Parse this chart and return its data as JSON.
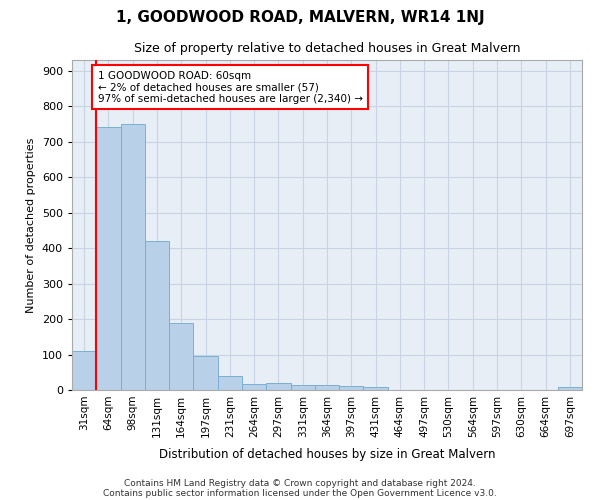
{
  "title": "1, GOODWOOD ROAD, MALVERN, WR14 1NJ",
  "subtitle": "Size of property relative to detached houses in Great Malvern",
  "xlabel": "Distribution of detached houses by size in Great Malvern",
  "ylabel": "Number of detached properties",
  "bar_color": "#b8d0e8",
  "bar_edge_color": "#7aafd4",
  "grid_color": "#c8d4e4",
  "bg_color": "#e8eef6",
  "categories": [
    "31sqm",
    "64sqm",
    "98sqm",
    "131sqm",
    "164sqm",
    "197sqm",
    "231sqm",
    "264sqm",
    "297sqm",
    "331sqm",
    "364sqm",
    "397sqm",
    "431sqm",
    "464sqm",
    "497sqm",
    "530sqm",
    "564sqm",
    "597sqm",
    "630sqm",
    "664sqm",
    "697sqm"
  ],
  "values": [
    110,
    740,
    750,
    420,
    190,
    95,
    40,
    18,
    20,
    15,
    15,
    12,
    8,
    0,
    0,
    0,
    0,
    0,
    0,
    0,
    8
  ],
  "annotation_line1": "1 GOODWOOD ROAD: 60sqm",
  "annotation_line2": "← 2% of detached houses are smaller (57)",
  "annotation_line3": "97% of semi-detached houses are larger (2,340) →",
  "ylim": [
    0,
    930
  ],
  "yticks": [
    0,
    100,
    200,
    300,
    400,
    500,
    600,
    700,
    800,
    900
  ],
  "footer1": "Contains HM Land Registry data © Crown copyright and database right 2024.",
  "footer2": "Contains public sector information licensed under the Open Government Licence v3.0."
}
